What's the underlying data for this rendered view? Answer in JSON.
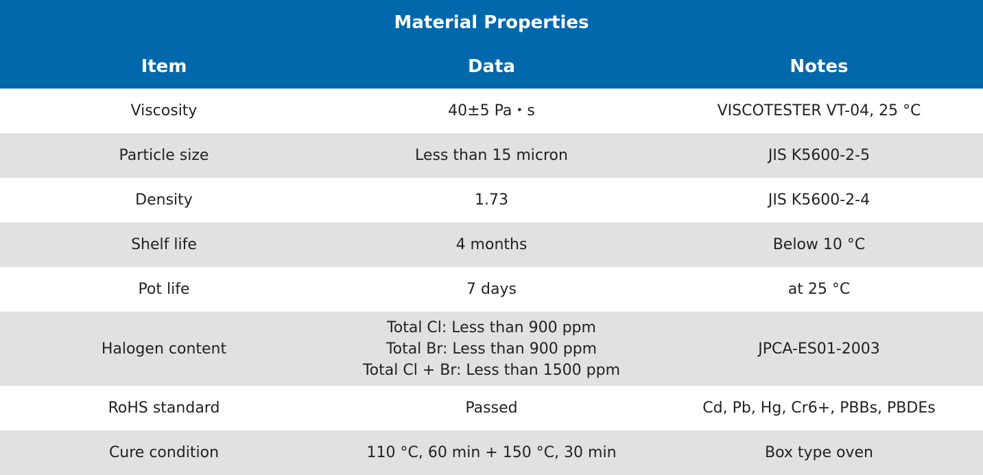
{
  "table": {
    "title": "Material Properties",
    "columns": [
      "Item",
      "Data",
      "Notes"
    ],
    "rows": [
      {
        "item": "Viscosity",
        "data": [
          "40±5 Pa・s"
        ],
        "notes": "VISCOTESTER VT-04, 25 °C"
      },
      {
        "item": "Particle size",
        "data": [
          "Less than 15 micron"
        ],
        "notes": "JIS K5600-2-5"
      },
      {
        "item": "Density",
        "data": [
          "1.73"
        ],
        "notes": "JIS K5600-2-4"
      },
      {
        "item": "Shelf life",
        "data": [
          "4 months"
        ],
        "notes": "Below 10 °C"
      },
      {
        "item": "Pot life",
        "data": [
          "7 days"
        ],
        "notes": "at 25 °C"
      },
      {
        "item": "Halogen content",
        "data": [
          "Total Cl: Less than 900 ppm",
          "Total Br: Less than 900 ppm",
          "Total Cl + Br: Less than 1500 ppm"
        ],
        "notes": "JPCA-ES01-2003"
      },
      {
        "item": "RoHS standard",
        "data": [
          "Passed"
        ],
        "notes": "Cd, Pb, Hg, Cr6+, PBBs, PBDEs"
      },
      {
        "item": "Cure condition",
        "data": [
          "110 °C, 60 min + 150 °C, 30 min"
        ],
        "notes": "Box type oven"
      }
    ]
  },
  "colors": {
    "header_bg": "#0068ab",
    "header_text": "#ffffff",
    "row_white": "#ffffff",
    "row_gray": "#e1e1e1",
    "body_text": "#222222"
  }
}
